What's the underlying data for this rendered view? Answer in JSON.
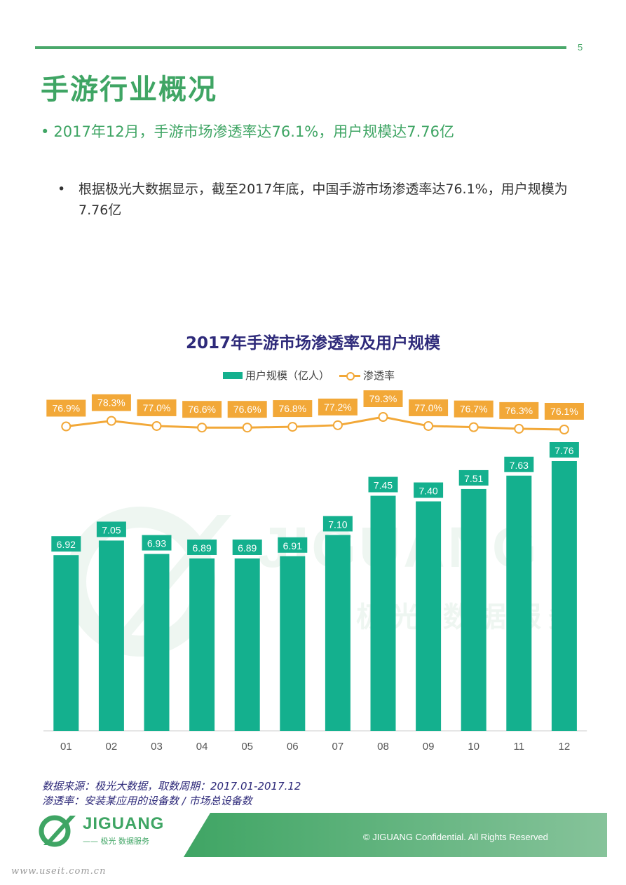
{
  "page": {
    "number": "5",
    "title": "手游行业概况",
    "subtitle_bullet": "•",
    "subtitle": "2017年12月，手游市场渗透率达76.1%，用户规模达7.76亿",
    "body_bullet": "•",
    "body_text": "根据极光大数据显示，截至2017年底，中国手游市场渗透率达76.1%，用户规模为7.76亿",
    "source_line1": "数据来源：极光大数据，取数周期：2017.01-2017.12",
    "source_line2": "渗透率：安装某应用的设备数 / 市场总设备数",
    "footer": "© JIGUANG Confidential. All Rights Reserved",
    "logo_name": "JIGUANG",
    "logo_sub": "—— 极光  数据服务",
    "watermark_url": "www.useit.com.cn",
    "bg_watermark_text": "JIGUANG",
    "bg_watermark_sub": "极光 数据服务"
  },
  "colors": {
    "brand_green": "#3fa564",
    "bar": "#14b08e",
    "line": "#f2a838",
    "title_navy": "#2e2a7a"
  },
  "chart_data": {
    "type": "bar+line",
    "title": "2017年手游市场渗透率及用户规模",
    "categories": [
      "01",
      "02",
      "03",
      "04",
      "05",
      "06",
      "07",
      "08",
      "09",
      "10",
      "11",
      "12"
    ],
    "series": [
      {
        "name": "用户规模（亿人）",
        "type": "bar",
        "values": [
          6.92,
          7.05,
          6.93,
          6.89,
          6.89,
          6.91,
          7.1,
          7.45,
          7.4,
          7.51,
          7.63,
          7.76
        ],
        "labels": [
          "6.92",
          "7.05",
          "6.93",
          "6.89",
          "6.89",
          "6.91",
          "7.10",
          "7.45",
          "7.40",
          "7.51",
          "7.63",
          "7.76"
        ]
      },
      {
        "name": "渗透率",
        "type": "line",
        "values": [
          76.9,
          78.3,
          77.0,
          76.6,
          76.6,
          76.8,
          77.2,
          79.3,
          77.0,
          76.7,
          76.3,
          76.1
        ],
        "labels": [
          "76.9%",
          "78.3%",
          "77.0%",
          "76.6%",
          "76.6%",
          "76.8%",
          "77.2%",
          "79.3%",
          "77.0%",
          "76.7%",
          "76.3%",
          "76.1%"
        ]
      }
    ],
    "legend_position": "top",
    "grid": false
  }
}
